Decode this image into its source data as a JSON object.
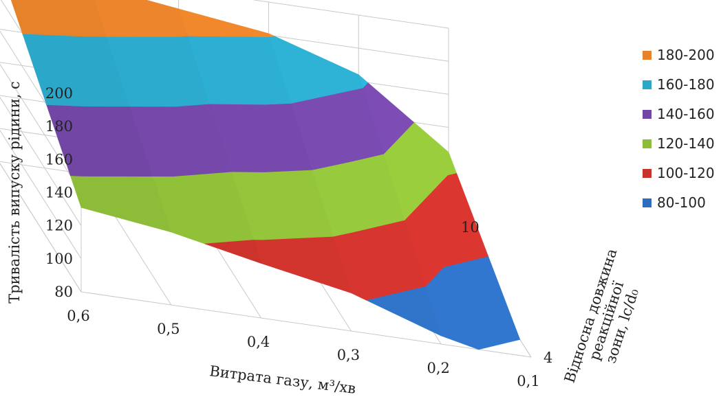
{
  "chart_data": {
    "type": "surface",
    "title": "",
    "xlabel": "Витрата газу, м³/хв",
    "ylabel": "Тривалість випуску рідини, с",
    "zlabel": [
      "Відносна довжина",
      "реакційної",
      "зони, lс/d₀"
    ],
    "x": [
      "0,6",
      "0,5",
      "0,4",
      "0,3",
      "0,2",
      "0,1"
    ],
    "depth": [
      "4",
      "10"
    ],
    "zlim": [
      80,
      200
    ],
    "z_ticks": [
      "200",
      "180",
      "160",
      "140",
      "120",
      "100",
      "80"
    ],
    "values_depth_4": [
      131,
      124,
      113,
      103,
      85,
      73
    ],
    "values_depth_10": [
      200,
      195,
      188,
      181,
      164,
      125
    ],
    "series": [
      {
        "name": "180-200",
        "color": "#e6822a"
      },
      {
        "name": "160-180",
        "color": "#2ba7c9"
      },
      {
        "name": "140-160",
        "color": "#7246a5"
      },
      {
        "name": "120-140",
        "color": "#8dbc38"
      },
      {
        "name": "100-120",
        "color": "#c8322c"
      },
      {
        "name": "80-100",
        "color": "#2e6dbd"
      }
    ],
    "legend_position": "right"
  }
}
